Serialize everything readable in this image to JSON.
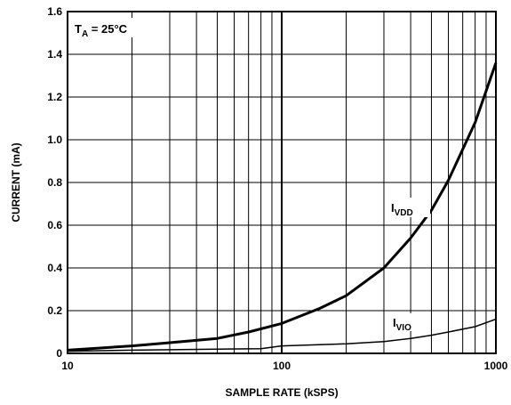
{
  "chart_data": {
    "type": "line",
    "title": "",
    "xlabel": "SAMPLE RATE (kSPS)",
    "ylabel": "CURRENT (mA)",
    "xscale": "log",
    "xlim": [
      10,
      1000
    ],
    "ylim": [
      0,
      1.6
    ],
    "grid": true,
    "x_tick_labels": [
      "10",
      "100",
      "1000"
    ],
    "y_tick_labels": [
      "0",
      "0.2",
      "0.4",
      "0.6",
      "0.8",
      "1.0",
      "1.2",
      "1.4",
      "1.6"
    ],
    "condition": {
      "main": "T",
      "sub": "A",
      "rest": " = 25°C"
    },
    "series": [
      {
        "name_main": "I",
        "name_sub": "VDD",
        "x": [
          10,
          20,
          30,
          50,
          70,
          100,
          150,
          200,
          300,
          400,
          500,
          600,
          800,
          1000
        ],
        "y": [
          0.015,
          0.035,
          0.05,
          0.07,
          0.1,
          0.14,
          0.21,
          0.27,
          0.4,
          0.54,
          0.67,
          0.81,
          1.08,
          1.36
        ]
      },
      {
        "name_main": "I",
        "name_sub": "VIO",
        "x": [
          10,
          20,
          50,
          80,
          100,
          200,
          300,
          400,
          500,
          600,
          800,
          1000
        ],
        "y": [
          0.01,
          0.015,
          0.02,
          0.022,
          0.035,
          0.045,
          0.055,
          0.07,
          0.085,
          0.1,
          0.125,
          0.16
        ]
      }
    ]
  }
}
